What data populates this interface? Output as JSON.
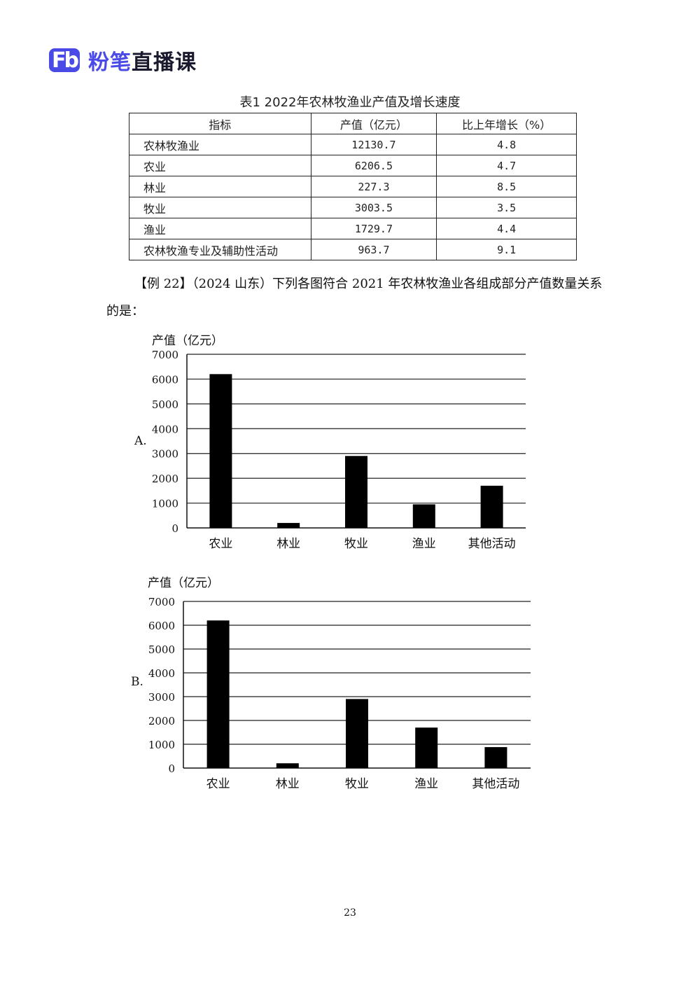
{
  "header": {
    "logo_mark": "Fb",
    "brand": "粉笔",
    "suffix": "直播课"
  },
  "table": {
    "caption": "表1 2022年农林牧渔业产值及增长速度",
    "columns": [
      "指标",
      "产值（亿元）",
      "比上年增长（%）"
    ],
    "rows": [
      [
        "农林牧渔业",
        "12130.7",
        "4.8"
      ],
      [
        "农业",
        "6206.5",
        "4.7"
      ],
      [
        "林业",
        "227.3",
        "8.5"
      ],
      [
        "牧业",
        "3003.5",
        "3.5"
      ],
      [
        "渔业",
        "1729.7",
        "4.4"
      ],
      [
        "农林牧渔专业及辅助性活动",
        "963.7",
        "9.1"
      ]
    ]
  },
  "question": {
    "prefix": "【例 22】",
    "text": "（2024 山东）下列各图符合 2021 年农林牧渔业各组成部分产值数量关系的是："
  },
  "chart_data": [
    {
      "type": "bar",
      "option_label": "A.",
      "ylabel": "产值（亿元）",
      "ylim": [
        0,
        7000
      ],
      "yticks": [
        0,
        1000,
        2000,
        3000,
        4000,
        5000,
        6000,
        7000
      ],
      "categories": [
        "农业",
        "林业",
        "牧业",
        "渔业",
        "其他活动"
      ],
      "values": [
        6200,
        200,
        2900,
        950,
        1700
      ],
      "grid": true,
      "bar_color": "#000000"
    },
    {
      "type": "bar",
      "option_label": "B.",
      "ylabel": "产值（亿元）",
      "ylim": [
        0,
        7000
      ],
      "yticks": [
        0,
        1000,
        2000,
        3000,
        4000,
        5000,
        6000,
        7000
      ],
      "categories": [
        "农业",
        "林业",
        "牧业",
        "渔业",
        "其他活动"
      ],
      "values": [
        6200,
        200,
        2900,
        1700,
        880
      ],
      "grid": true,
      "bar_color": "#000000"
    }
  ],
  "footer": {
    "page_number": "23"
  }
}
